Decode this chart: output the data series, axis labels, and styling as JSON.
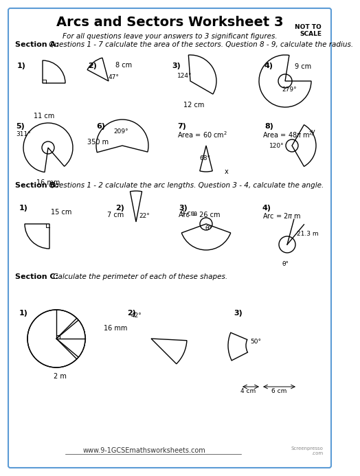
{
  "title": "Arcs and Sectors Worksheet 3",
  "not_to_scale": "NOT TO\nSCALE",
  "subtitle": "For all questions leave your answers to 3 significant figures.",
  "section_a_label": "Section A:",
  "section_a_text": " Questions 1 - 7 calculate the area of the sectors. Question 8 - 9, calculate the radius.",
  "section_b_label": "Section B:",
  "section_b_text": " Questions 1 - 2 calculate the arc lengths. Question 3 - 4, calculate the angle.",
  "section_c_label": "Section C:",
  "section_c_text": " Calculate the perimeter of each of these shapes.",
  "bg_color": "#ffffff",
  "border_color": "#5b9bd5",
  "text_color": "#000000",
  "footer": "www.9-1GCSEmathsworksheets.com"
}
